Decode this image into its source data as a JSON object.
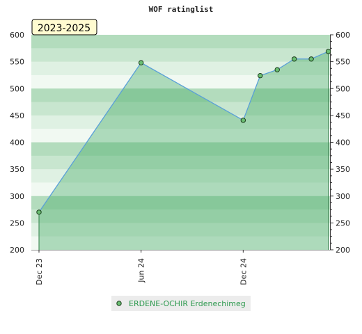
{
  "chart_data": {
    "type": "area",
    "title": "WOF ratinglist",
    "period_label": "2023-2025",
    "xlabel": "",
    "ylabel": "",
    "ylim": [
      200,
      600
    ],
    "y_ticks": [
      200,
      250,
      300,
      350,
      400,
      450,
      500,
      550,
      600
    ],
    "x_ticks": [
      {
        "label": "Dec 23",
        "x": 0
      },
      {
        "label": "Jun 24",
        "x": 6
      },
      {
        "label": "Dec 24",
        "x": 12
      }
    ],
    "xlim": [
      -0.45,
      17.1
    ],
    "grid": true,
    "legend_position": "bottom-center",
    "series": [
      {
        "name": "ERDENE-OCHIR Erdenechimeg",
        "x": [
          0,
          6,
          12,
          13,
          14,
          15,
          16,
          17
        ],
        "values": [
          270,
          548,
          441,
          524,
          535,
          555,
          555,
          569
        ]
      }
    ],
    "colors": {
      "line": "#5aa0d8",
      "area": "#3fa860",
      "marker": "#6bbf73",
      "legend_text": "#2e9a4f",
      "band_dark": "#b3dcbd",
      "band_light": "#ffffff"
    }
  }
}
